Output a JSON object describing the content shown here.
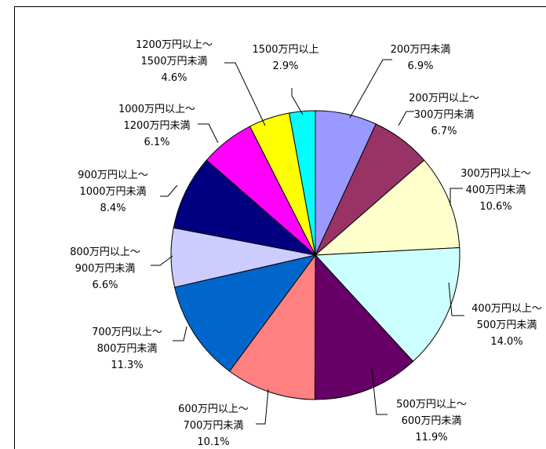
{
  "chart_data": {
    "type": "pie",
    "title": "",
    "slices": [
      {
        "label_lines": [
          "200万円未満"
        ],
        "value_text": "6.9%",
        "value": 6.9,
        "color": "#9999FF"
      },
      {
        "label_lines": [
          "200万円以上～",
          "300万円未満"
        ],
        "value_text": "6.7%",
        "value": 6.7,
        "color": "#993366"
      },
      {
        "label_lines": [
          "300万円以上～",
          "400万円未満"
        ],
        "value_text": "10.6%",
        "value": 10.6,
        "color": "#FFFFCC"
      },
      {
        "label_lines": [
          "400万円以上～",
          "500万円未満"
        ],
        "value_text": "14.0%",
        "value": 14.0,
        "color": "#CCFFFF"
      },
      {
        "label_lines": [
          "500万円以上～",
          "600万円未満"
        ],
        "value_text": "11.9%",
        "value": 11.9,
        "color": "#660066"
      },
      {
        "label_lines": [
          "600万円以上～",
          "700万円未満"
        ],
        "value_text": "10.1%",
        "value": 10.1,
        "color": "#FF8080"
      },
      {
        "label_lines": [
          "700万円以上～",
          "800万円未満"
        ],
        "value_text": "11.3%",
        "value": 11.3,
        "color": "#0066CC"
      },
      {
        "label_lines": [
          "800万円以上～",
          "900万円未満"
        ],
        "value_text": "6.6%",
        "value": 6.6,
        "color": "#CCCCFF"
      },
      {
        "label_lines": [
          "900万円以上～",
          "1000万円未満"
        ],
        "value_text": "8.4%",
        "value": 8.4,
        "color": "#000080"
      },
      {
        "label_lines": [
          "1000万円以上～",
          "1200万円未満"
        ],
        "value_text": "6.1%",
        "value": 6.1,
        "color": "#FF00FF"
      },
      {
        "label_lines": [
          "1200万円以上～",
          "1500万円未満"
        ],
        "value_text": "4.6%",
        "value": 4.6,
        "color": "#FFFF00"
      },
      {
        "label_lines": [
          "1500万円以上"
        ],
        "value_text": "2.9%",
        "value": 2.9,
        "color": "#00FFFF"
      }
    ]
  }
}
